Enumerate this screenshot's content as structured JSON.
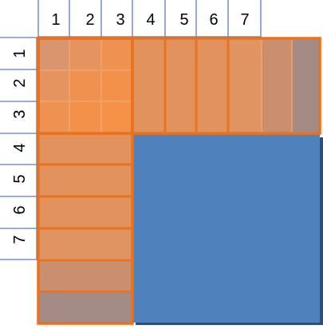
{
  "colors": {
    "header_line": "#5a7fb8",
    "orange_fill": "#f08a3c",
    "orange_dark": "#d9834e",
    "orange_border": "#e8721e",
    "brownish": "#c98f6f",
    "mauve": "#a58b86",
    "blue_fill": "#4f81bd",
    "blue_shadow": "#2e4f7a",
    "text": "#000000"
  },
  "column_headers": [
    "1",
    "2",
    "3",
    "4",
    "5",
    "6",
    "7"
  ],
  "row_headers": [
    "1",
    "2",
    "3",
    "4",
    "5",
    "6",
    "7"
  ]
}
